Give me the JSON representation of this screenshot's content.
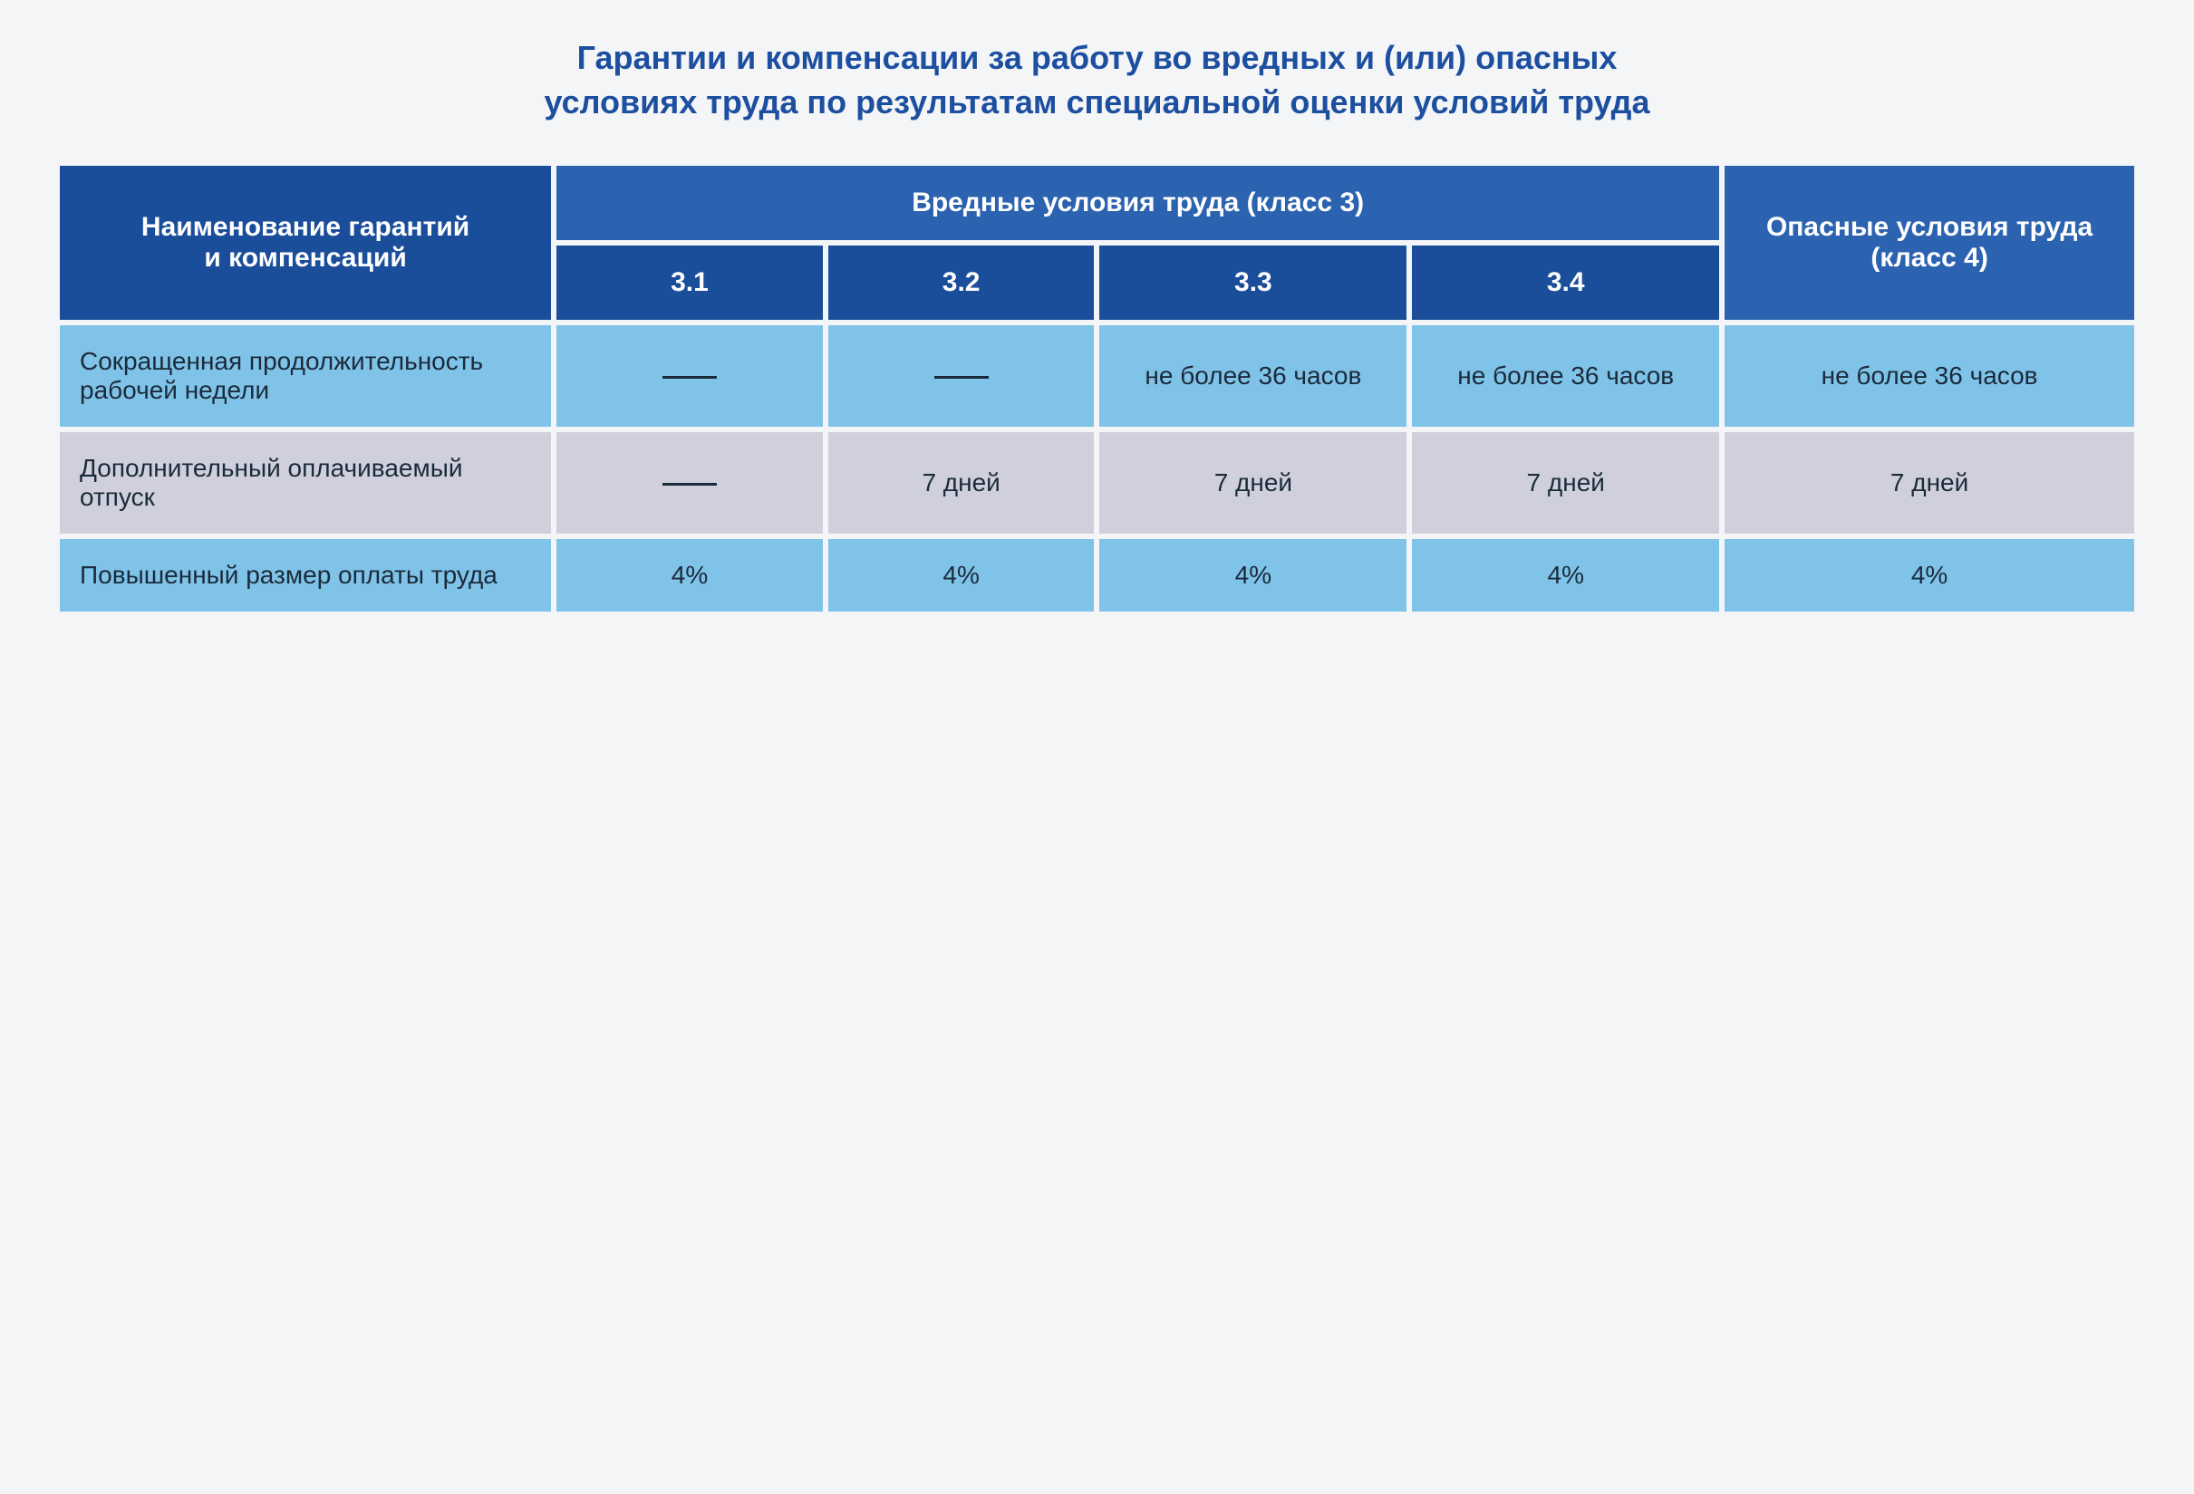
{
  "title": "Гарантии и компенсации за работу во вредных и (или) опасных условиях труда по результатам специальной оценки условий труда",
  "title_color": "#1d4fa0",
  "title_fontsize": 36,
  "header": {
    "col0": "Наименование гарантий и компенсаций",
    "group": "Вредные условия труда (класс 3)",
    "sub": [
      "3.1",
      "3.2",
      "3.3",
      "3.4"
    ],
    "col_last": "Опасные условия труда (класс 4)",
    "bg_dark": "#1a4d9a",
    "bg_mid": "#2b63b0",
    "text_color": "#ffffff",
    "fontsize": 30,
    "sub_fontsize": 30
  },
  "col_widths": [
    "24%",
    "13%",
    "13%",
    "15%",
    "15%",
    "20%"
  ],
  "rows": [
    {
      "label": "Сокращенная продолжительность рабочей недели",
      "cells": [
        "—",
        "—",
        "не более 36 часов",
        "не более 36 часов",
        "не более 36 часов"
      ],
      "is_dash": [
        true,
        true,
        false,
        false,
        false
      ],
      "bg": "#7fc3e8",
      "text_color": "#1b2a3a"
    },
    {
      "label": "Дополнительный оплачиваемый отпуск",
      "cells": [
        "—",
        "7 дней",
        "7 дней",
        "7 дней",
        "7 дней"
      ],
      "is_dash": [
        true,
        false,
        false,
        false,
        false
      ],
      "bg": "#cfd0dc",
      "text_color": "#1b2a3a"
    },
    {
      "label": "Повышенный размер оплаты труда",
      "cells": [
        "4%",
        "4%",
        "4%",
        "4%",
        "4%"
      ],
      "is_dash": [
        false,
        false,
        false,
        false,
        false
      ],
      "bg": "#7fc3e8",
      "text_color": "#1b2a3a"
    }
  ],
  "cell_fontsize": 28,
  "page_bg": "#f4f5f7"
}
